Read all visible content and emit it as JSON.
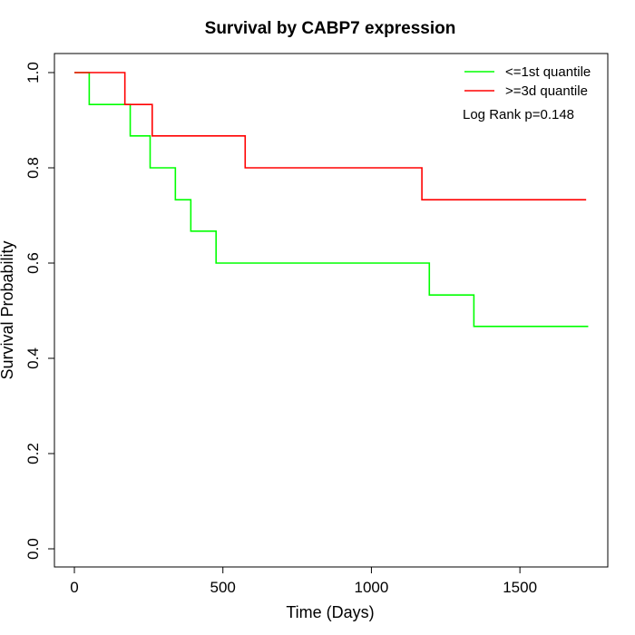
{
  "chart_data": {
    "type": "line",
    "title": "Survival by CABP7 expression",
    "xlabel": "Time (Days)",
    "ylabel": "Survival Probability",
    "xlim": [
      0,
      1800
    ],
    "ylim": [
      0,
      1.0
    ],
    "x_ticks": [
      0,
      500,
      1000,
      1500
    ],
    "x_tick_labels": [
      "0",
      "500",
      "1000",
      "1500"
    ],
    "y_ticks": [
      0.0,
      0.2,
      0.4,
      0.6,
      0.8,
      1.0
    ],
    "y_tick_labels": [
      "0.0",
      "0.2",
      "0.4",
      "0.6",
      "0.8",
      "1.0"
    ],
    "grid": false,
    "legend_position": "top-right",
    "annotation": "Log Rank p=0.148",
    "series": [
      {
        "name": "<=1st quantile",
        "color": "#00ff00",
        "step": true,
        "x": [
          0,
          50,
          188,
          255,
          340,
          392,
          477,
          1195,
          1345,
          1730
        ],
        "y": [
          1.0,
          0.933,
          0.867,
          0.8,
          0.733,
          0.667,
          0.6,
          0.533,
          0.467,
          0.467
        ]
      },
      {
        "name": ">=3d quantile",
        "color": "#ff0000",
        "step": true,
        "x": [
          0,
          170,
          262,
          575,
          1170,
          1723
        ],
        "y": [
          1.0,
          0.933,
          0.867,
          0.8,
          0.733,
          0.733
        ]
      }
    ]
  }
}
